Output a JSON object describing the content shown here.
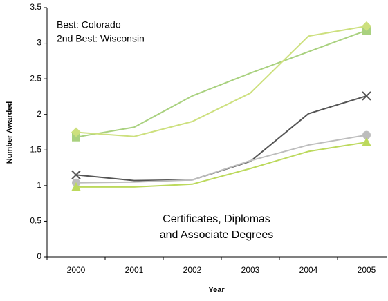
{
  "chart_data": {
    "type": "line",
    "annotations": [
      "Best:  Colorado",
      "2nd Best:  Wisconsin"
    ],
    "caption": [
      "Certificates, Diplomas",
      "and Associate Degrees"
    ],
    "x_label": "Year",
    "y_label": "Number Awarded",
    "categories": [
      "2000",
      "2001",
      "2002",
      "2003",
      "2004",
      "2005"
    ],
    "ylim": [
      0,
      3.5
    ],
    "yticks": [
      0,
      0.5,
      1,
      1.5,
      2,
      2.5,
      3,
      3.5
    ],
    "series": [
      {
        "color": "#a9d17f",
        "marker": "square",
        "values": [
          1.68,
          1.82,
          2.26,
          2.58,
          2.88,
          3.18
        ]
      },
      {
        "color": "#cde07e",
        "marker": "diamond",
        "values": [
          1.75,
          1.69,
          1.9,
          2.3,
          3.1,
          3.24
        ]
      },
      {
        "color": "#555555",
        "marker": "x",
        "values": [
          1.15,
          1.07,
          1.08,
          1.34,
          2.01,
          2.26
        ]
      },
      {
        "color": "#bdbdbd",
        "marker": "circle",
        "values": [
          1.04,
          1.05,
          1.08,
          1.35,
          1.57,
          1.71
        ]
      },
      {
        "color": "#bcd95c",
        "marker": "triangle",
        "values": [
          0.98,
          0.98,
          1.02,
          1.24,
          1.48,
          1.61
        ]
      }
    ]
  }
}
